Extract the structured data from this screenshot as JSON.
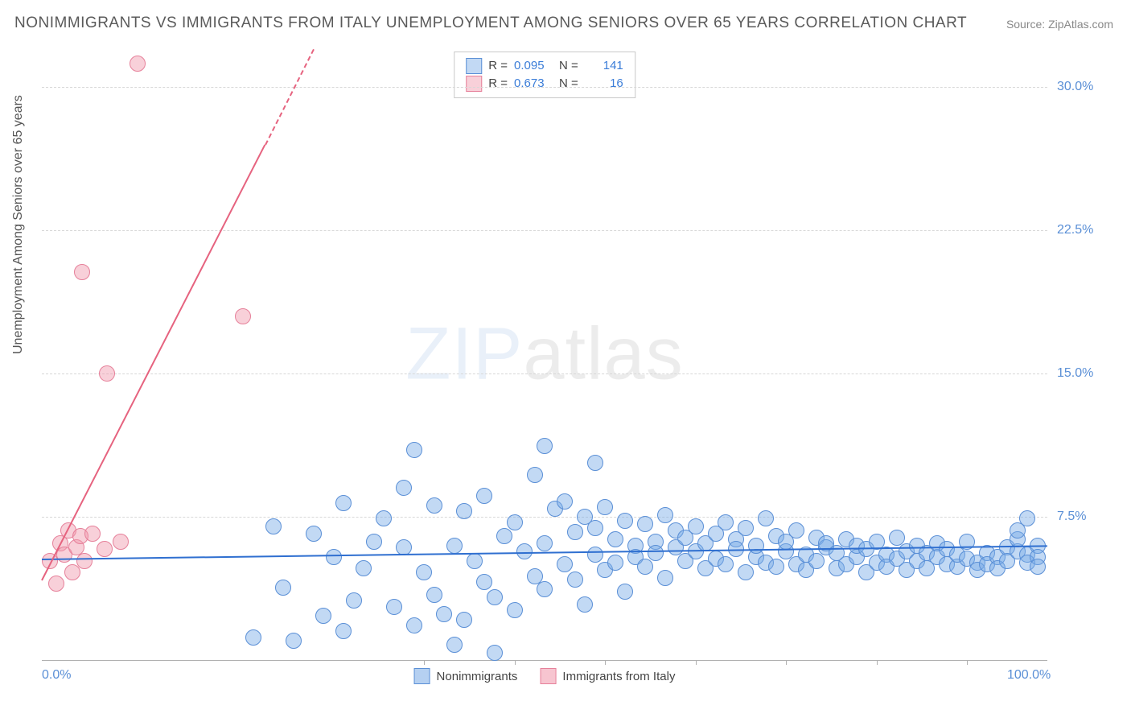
{
  "title": "NONIMMIGRANTS VS IMMIGRANTS FROM ITALY UNEMPLOYMENT AMONG SENIORS OVER 65 YEARS CORRELATION CHART",
  "source": "Source: ZipAtlas.com",
  "ylabel": "Unemployment Among Seniors over 65 years",
  "watermark_zip": "ZIP",
  "watermark_atlas": "atlas",
  "chart": {
    "type": "scatter",
    "background_color": "#ffffff",
    "grid_color": "#d8d8d8",
    "axis_color": "#b0b0b0",
    "xlim": [
      0,
      100
    ],
    "ylim": [
      0,
      32
    ],
    "yticks": [
      7.5,
      15.0,
      22.5,
      30.0
    ],
    "ytick_labels": [
      "7.5%",
      "15.0%",
      "22.5%",
      "30.0%"
    ],
    "xtick_positions": [
      0,
      100
    ],
    "xtick_labels": [
      "0.0%",
      "100.0%"
    ],
    "xtick_minor": [
      38,
      47,
      56,
      65,
      74,
      83,
      92
    ],
    "series": [
      {
        "name": "Nonimmigrants",
        "color_fill": "rgba(120,170,230,0.45)",
        "color_stroke": "#5a8fd6",
        "marker_radius": 9,
        "R": "0.095",
        "N": "141",
        "trend": {
          "x1": 0,
          "y1": 5.3,
          "x2": 100,
          "y2": 6.0,
          "color": "#2f6fd0",
          "width": 2
        },
        "points": [
          [
            21,
            1.2
          ],
          [
            23,
            7.0
          ],
          [
            24,
            3.8
          ],
          [
            25,
            1.0
          ],
          [
            27,
            6.6
          ],
          [
            28,
            2.3
          ],
          [
            29,
            5.4
          ],
          [
            30,
            8.2
          ],
          [
            31,
            3.1
          ],
          [
            32,
            4.8
          ],
          [
            33,
            6.2
          ],
          [
            34,
            7.4
          ],
          [
            35,
            2.8
          ],
          [
            36,
            5.9
          ],
          [
            36,
            9.0
          ],
          [
            37,
            11.0
          ],
          [
            38,
            4.6
          ],
          [
            39,
            3.4
          ],
          [
            39,
            8.1
          ],
          [
            40,
            2.4
          ],
          [
            41,
            6.0
          ],
          [
            41,
            0.8
          ],
          [
            42,
            7.8
          ],
          [
            43,
            5.2
          ],
          [
            44,
            4.1
          ],
          [
            44,
            8.6
          ],
          [
            45,
            3.3
          ],
          [
            46,
            6.5
          ],
          [
            47,
            7.2
          ],
          [
            47,
            2.6
          ],
          [
            48,
            5.7
          ],
          [
            49,
            4.4
          ],
          [
            49,
            9.7
          ],
          [
            50,
            6.1
          ],
          [
            50,
            3.7
          ],
          [
            51,
            7.9
          ],
          [
            52,
            5.0
          ],
          [
            52,
            8.3
          ],
          [
            53,
            6.7
          ],
          [
            53,
            4.2
          ],
          [
            54,
            7.5
          ],
          [
            54,
            2.9
          ],
          [
            55,
            5.5
          ],
          [
            55,
            6.9
          ],
          [
            56,
            4.7
          ],
          [
            56,
            8.0
          ],
          [
            57,
            6.3
          ],
          [
            57,
            5.1
          ],
          [
            58,
            7.3
          ],
          [
            58,
            3.6
          ],
          [
            59,
            6.0
          ],
          [
            59,
            5.4
          ],
          [
            60,
            4.9
          ],
          [
            60,
            7.1
          ],
          [
            61,
            6.2
          ],
          [
            61,
            5.6
          ],
          [
            62,
            7.6
          ],
          [
            62,
            4.3
          ],
          [
            63,
            6.8
          ],
          [
            63,
            5.9
          ],
          [
            64,
            5.2
          ],
          [
            64,
            6.4
          ],
          [
            65,
            7.0
          ],
          [
            65,
            5.7
          ],
          [
            66,
            6.1
          ],
          [
            66,
            4.8
          ],
          [
            67,
            5.3
          ],
          [
            67,
            6.6
          ],
          [
            68,
            7.2
          ],
          [
            68,
            5.0
          ],
          [
            69,
            6.3
          ],
          [
            69,
            5.8
          ],
          [
            70,
            4.6
          ],
          [
            70,
            6.9
          ],
          [
            71,
            5.4
          ],
          [
            71,
            6.0
          ],
          [
            72,
            7.4
          ],
          [
            72,
            5.1
          ],
          [
            73,
            6.5
          ],
          [
            73,
            4.9
          ],
          [
            74,
            5.7
          ],
          [
            74,
            6.2
          ],
          [
            75,
            5.0
          ],
          [
            75,
            6.8
          ],
          [
            76,
            5.5
          ],
          [
            76,
            4.7
          ],
          [
            77,
            6.4
          ],
          [
            77,
            5.2
          ],
          [
            78,
            5.9
          ],
          [
            78,
            6.1
          ],
          [
            79,
            4.8
          ],
          [
            79,
            5.6
          ],
          [
            80,
            6.3
          ],
          [
            80,
            5.0
          ],
          [
            81,
            5.4
          ],
          [
            81,
            6.0
          ],
          [
            82,
            4.6
          ],
          [
            82,
            5.8
          ],
          [
            83,
            6.2
          ],
          [
            83,
            5.1
          ],
          [
            84,
            5.5
          ],
          [
            84,
            4.9
          ],
          [
            85,
            6.4
          ],
          [
            85,
            5.3
          ],
          [
            86,
            5.7
          ],
          [
            86,
            4.7
          ],
          [
            87,
            6.0
          ],
          [
            87,
            5.2
          ],
          [
            88,
            5.6
          ],
          [
            88,
            4.8
          ],
          [
            89,
            5.4
          ],
          [
            89,
            6.1
          ],
          [
            90,
            5.0
          ],
          [
            90,
            5.8
          ],
          [
            91,
            4.9
          ],
          [
            91,
            5.5
          ],
          [
            92,
            5.3
          ],
          [
            92,
            6.2
          ],
          [
            93,
            5.1
          ],
          [
            93,
            4.7
          ],
          [
            94,
            5.6
          ],
          [
            94,
            5.0
          ],
          [
            95,
            5.4
          ],
          [
            95,
            4.8
          ],
          [
            96,
            5.9
          ],
          [
            96,
            5.2
          ],
          [
            97,
            5.7
          ],
          [
            97,
            6.3
          ],
          [
            97,
            6.8
          ],
          [
            98,
            5.5
          ],
          [
            98,
            7.4
          ],
          [
            98,
            5.1
          ],
          [
            99,
            6.0
          ],
          [
            99,
            5.4
          ],
          [
            99,
            4.9
          ],
          [
            45,
            0.4
          ],
          [
            50,
            11.2
          ],
          [
            55,
            10.3
          ],
          [
            37,
            1.8
          ],
          [
            42,
            2.1
          ],
          [
            30,
            1.5
          ]
        ]
      },
      {
        "name": "Immigrants from Italy",
        "color_fill": "rgba(240,150,170,0.45)",
        "color_stroke": "#e6809a",
        "marker_radius": 9,
        "R": "0.673",
        "N": "16",
        "trend": {
          "x1": 0,
          "y1": 4.2,
          "x2": 27,
          "y2": 32,
          "color": "#e6637f",
          "width": 2
        },
        "trend_dashed": {
          "x1": 22.2,
          "y1": 27,
          "x2": 27,
          "y2": 32,
          "color": "#e6637f",
          "width": 2
        },
        "points": [
          [
            0.8,
            5.2
          ],
          [
            1.4,
            4.0
          ],
          [
            1.8,
            6.1
          ],
          [
            2.2,
            5.5
          ],
          [
            2.6,
            6.8
          ],
          [
            3.0,
            4.6
          ],
          [
            3.4,
            5.9
          ],
          [
            3.8,
            6.5
          ],
          [
            4.2,
            5.2
          ],
          [
            5.0,
            6.6
          ],
          [
            6.2,
            5.8
          ],
          [
            7.8,
            6.2
          ],
          [
            6.5,
            15.0
          ],
          [
            4.0,
            20.3
          ],
          [
            9.5,
            31.2
          ],
          [
            20.0,
            18.0
          ]
        ]
      }
    ],
    "legend_bottom": [
      {
        "label": "Nonimmigrants",
        "fill": "rgba(120,170,230,0.55)",
        "stroke": "#5a8fd6"
      },
      {
        "label": "Immigrants from Italy",
        "fill": "rgba(240,150,170,0.55)",
        "stroke": "#e6809a"
      }
    ]
  }
}
